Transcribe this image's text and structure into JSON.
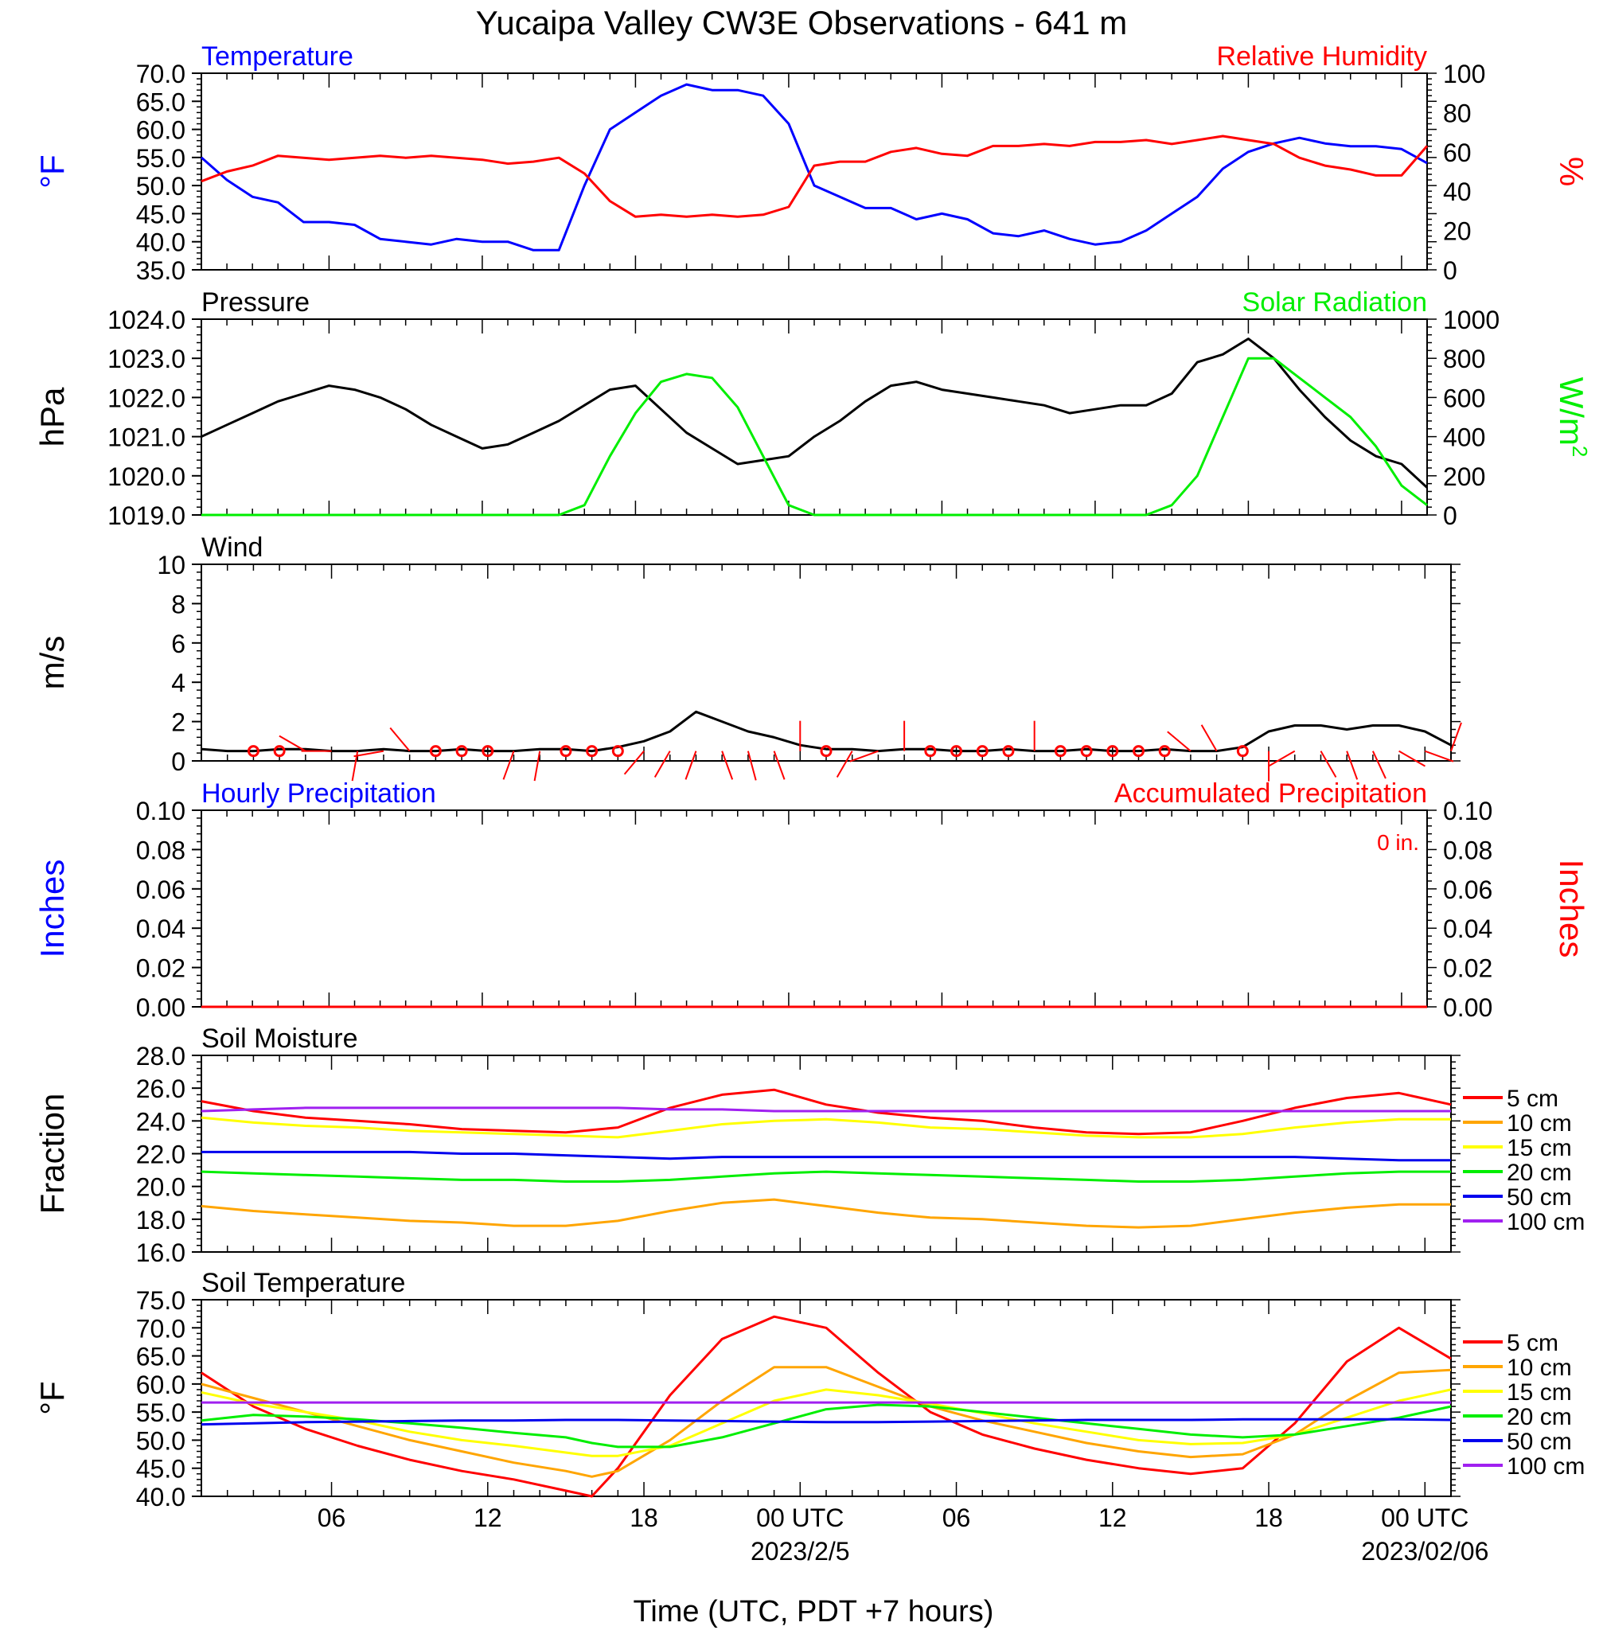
{
  "title": "Yucaipa Valley CW3E Observations - 641 m",
  "x_axis": {
    "label": "Time (UTC, PDT +7 hours)",
    "ticks": [
      "06",
      "12",
      "18",
      "00 UTC",
      "06",
      "12",
      "18",
      "00 UTC"
    ],
    "tick_hours": [
      6,
      12,
      18,
      24,
      30,
      36,
      42,
      48
    ],
    "range_hours": [
      1,
      49
    ],
    "date_labels": [
      "2023/2/5",
      "2023/02/06"
    ]
  },
  "colors": {
    "temperature": "#0000ff",
    "humidity": "#ff0000",
    "pressure": "#000000",
    "solar": "#00ee00",
    "wind": "#000000",
    "wind_barb": "#ff0000",
    "d5": "#ff0000",
    "d10": "#ffa500",
    "d15": "#ffff00",
    "d20": "#00ee00",
    "d50": "#0000ee",
    "d100": "#a020f0"
  },
  "chart_data": [
    {
      "id": "temp_rh",
      "type": "line",
      "left_title": "Temperature",
      "right_title": "Relative Humidity",
      "ylabel_left": "°F",
      "ylabel_right": "%",
      "ylim_left": [
        35,
        70
      ],
      "ylim_right": [
        0,
        100
      ],
      "yticks_left": [
        "35.0",
        "40.0",
        "45.0",
        "50.0",
        "55.0",
        "60.0",
        "65.0",
        "70.0"
      ],
      "yticks_right": [
        "0",
        "20",
        "40",
        "60",
        "80",
        "100"
      ],
      "x": [
        1,
        2,
        3,
        4,
        5,
        6,
        7,
        8,
        9,
        10,
        11,
        12,
        13,
        14,
        15,
        16,
        17,
        18,
        19,
        20,
        21,
        22,
        23,
        24,
        25,
        26,
        27,
        28,
        29,
        30,
        31,
        32,
        33,
        34,
        35,
        36,
        37,
        38,
        39,
        40,
        41,
        42,
        43,
        44,
        45,
        46,
        47,
        48,
        49
      ],
      "series": [
        {
          "name": "Temperature",
          "axis": "left",
          "color_key": "temperature",
          "values": [
            55,
            51,
            48,
            47,
            43.5,
            43.5,
            43,
            40.5,
            40,
            39.5,
            40.5,
            40,
            40,
            38.5,
            38.5,
            50,
            60,
            63,
            66,
            68,
            67,
            67,
            66,
            61,
            50,
            48,
            46,
            46,
            44,
            45,
            44,
            41.5,
            41,
            42,
            40.5,
            39.5,
            40,
            42,
            45,
            48,
            53,
            56,
            57.5,
            58.5,
            57.5,
            57,
            57,
            56.5,
            54
          ]
        },
        {
          "name": "Relative Humidity",
          "axis": "right",
          "color_key": "humidity",
          "values": [
            45,
            50,
            53,
            58,
            57,
            56,
            57,
            58,
            57,
            58,
            57,
            56,
            54,
            55,
            57,
            49,
            35,
            27,
            28,
            27,
            28,
            27,
            28,
            32,
            53,
            55,
            55,
            60,
            62,
            59,
            58,
            63,
            63,
            64,
            63,
            65,
            65,
            66,
            64,
            66,
            68,
            66,
            64,
            57,
            53,
            51,
            48,
            48,
            63
          ]
        }
      ]
    },
    {
      "id": "pressure_solar",
      "type": "line",
      "left_title": "Pressure",
      "right_title": "Solar Radiation",
      "ylabel_left": "hPa",
      "ylabel_right": "W/m",
      "ylabel_right_sup": "2",
      "ylim_left": [
        1019,
        1024
      ],
      "ylim_right": [
        0,
        1000
      ],
      "yticks_left": [
        "1019.0",
        "1020.0",
        "1021.0",
        "1022.0",
        "1023.0",
        "1024.0"
      ],
      "yticks_right": [
        "0",
        "200",
        "400",
        "600",
        "800",
        "1000"
      ],
      "x": [
        1,
        2,
        3,
        4,
        5,
        6,
        7,
        8,
        9,
        10,
        11,
        12,
        13,
        14,
        15,
        16,
        17,
        18,
        19,
        20,
        21,
        22,
        23,
        24,
        25,
        26,
        27,
        28,
        29,
        30,
        31,
        32,
        33,
        34,
        35,
        36,
        37,
        38,
        39,
        40,
        41,
        42,
        43,
        44,
        45,
        46,
        47,
        48,
        49
      ],
      "series": [
        {
          "name": "Pressure",
          "axis": "left",
          "color_key": "pressure",
          "values": [
            1021.0,
            1021.3,
            1021.6,
            1021.9,
            1022.1,
            1022.3,
            1022.2,
            1022.0,
            1021.7,
            1021.3,
            1021.0,
            1020.7,
            1020.8,
            1021.1,
            1021.4,
            1021.8,
            1022.2,
            1022.3,
            1021.7,
            1021.1,
            1020.7,
            1020.3,
            1020.4,
            1020.5,
            1021.0,
            1021.4,
            1021.9,
            1022.3,
            1022.4,
            1022.2,
            1022.1,
            1022.0,
            1021.9,
            1021.8,
            1021.6,
            1021.7,
            1021.8,
            1021.8,
            1022.1,
            1022.9,
            1023.1,
            1023.5,
            1023.0,
            1022.2,
            1021.5,
            1020.9,
            1020.5,
            1020.3,
            1019.7
          ]
        },
        {
          "name": "Solar Radiation",
          "axis": "right",
          "color_key": "solar",
          "values": [
            0,
            0,
            0,
            0,
            0,
            0,
            0,
            0,
            0,
            0,
            0,
            0,
            0,
            0,
            0,
            50,
            300,
            520,
            680,
            720,
            700,
            550,
            300,
            50,
            0,
            0,
            0,
            0,
            0,
            0,
            0,
            0,
            0,
            0,
            0,
            0,
            0,
            0,
            50,
            200,
            500,
            800,
            800,
            700,
            600,
            500,
            350,
            150,
            50
          ]
        }
      ]
    },
    {
      "id": "wind",
      "type": "line",
      "left_title": "Wind",
      "ylabel_left": "m/s",
      "ylim_left": [
        0,
        10
      ],
      "yticks_left": [
        "0",
        "2",
        "4",
        "6",
        "8",
        "10"
      ],
      "x": [
        1,
        2,
        3,
        4,
        5,
        6,
        7,
        8,
        9,
        10,
        11,
        12,
        13,
        14,
        15,
        16,
        17,
        18,
        19,
        20,
        21,
        22,
        23,
        24,
        25,
        26,
        27,
        28,
        29,
        30,
        31,
        32,
        33,
        34,
        35,
        36,
        37,
        38,
        39,
        40,
        41,
        42,
        43,
        44,
        45,
        46,
        47,
        48,
        49
      ],
      "series": [
        {
          "name": "Wind",
          "axis": "left",
          "color_key": "wind",
          "values": [
            0.6,
            0.5,
            0.5,
            0.6,
            0.6,
            0.5,
            0.5,
            0.6,
            0.5,
            0.5,
            0.6,
            0.5,
            0.5,
            0.6,
            0.6,
            0.5,
            0.7,
            1.0,
            1.5,
            2.5,
            2.0,
            1.5,
            1.2,
            0.8,
            0.6,
            0.6,
            0.5,
            0.6,
            0.6,
            0.5,
            0.5,
            0.6,
            0.5,
            0.5,
            0.6,
            0.5,
            0.5,
            0.6,
            0.5,
            0.5,
            0.7,
            1.5,
            1.8,
            1.8,
            1.6,
            1.8,
            1.8,
            1.5,
            0.8
          ]
        }
      ],
      "barbs": {
        "x": [
          3,
          4,
          5,
          6,
          7,
          8,
          9,
          10,
          11,
          12,
          13,
          14,
          15,
          16,
          17,
          18,
          19,
          20,
          21,
          22,
          23,
          24,
          25,
          26,
          27,
          28,
          29,
          30,
          31,
          32,
          33,
          34,
          35,
          36,
          37,
          38,
          39,
          40,
          41,
          42,
          43,
          44,
          45,
          46,
          47,
          48,
          49
        ],
        "calm": [
          3,
          4,
          10,
          11,
          12,
          15,
          16,
          17,
          25,
          29,
          30,
          31,
          32,
          34,
          35,
          36,
          37,
          38,
          41
        ],
        "dir_deg": [
          0,
          0,
          300,
          270,
          190,
          260,
          320,
          0,
          0,
          0,
          200,
          190,
          0,
          0,
          0,
          220,
          210,
          200,
          160,
          165,
          160,
          0,
          245,
          210,
          250,
          0,
          0,
          0,
          0,
          0,
          0,
          0,
          0,
          0,
          0,
          0,
          310,
          330,
          0,
          180,
          240,
          150,
          160,
          155,
          120,
          110,
          20
        ]
      }
    },
    {
      "id": "precip",
      "type": "line",
      "left_title": "Hourly Precipitation",
      "right_title": "Accumulated Precipitation",
      "annotation": "0 in.",
      "ylabel_left": "Inches",
      "ylabel_right": "Inches",
      "ylim_left": [
        0,
        0.1
      ],
      "ylim_right": [
        0,
        0.1
      ],
      "yticks_left": [
        "0.00",
        "0.02",
        "0.04",
        "0.06",
        "0.08",
        "0.10"
      ],
      "yticks_right": [
        "0.00",
        "0.02",
        "0.04",
        "0.06",
        "0.08",
        "0.10"
      ],
      "x": [
        1,
        49
      ],
      "series": [
        {
          "name": "Hourly Precipitation",
          "axis": "left",
          "color_key": "temperature",
          "values": [
            0,
            0
          ]
        },
        {
          "name": "Accumulated Precipitation",
          "axis": "right",
          "color_key": "humidity",
          "values": [
            0,
            0
          ]
        }
      ]
    },
    {
      "id": "soil_moisture",
      "type": "line",
      "left_title": "Soil Moisture",
      "ylabel_left": "Fraction",
      "ylim_left": [
        16,
        28
      ],
      "yticks_left": [
        "16.0",
        "18.0",
        "20.0",
        "22.0",
        "24.0",
        "26.0",
        "28.0"
      ],
      "legend_position": "right",
      "x": [
        1,
        3,
        5,
        7,
        9,
        11,
        13,
        15,
        17,
        19,
        21,
        23,
        25,
        27,
        29,
        31,
        33,
        35,
        37,
        39,
        41,
        43,
        45,
        47,
        49
      ],
      "series": [
        {
          "name": "5 cm",
          "color_key": "d5",
          "values": [
            25.2,
            24.6,
            24.2,
            24.0,
            23.8,
            23.5,
            23.4,
            23.3,
            23.6,
            24.8,
            25.6,
            25.9,
            25.0,
            24.5,
            24.2,
            24.0,
            23.6,
            23.3,
            23.2,
            23.3,
            24.0,
            24.8,
            25.4,
            25.7,
            25.0
          ]
        },
        {
          "name": "10 cm",
          "color_key": "d10",
          "values": [
            18.8,
            18.5,
            18.3,
            18.1,
            17.9,
            17.8,
            17.6,
            17.6,
            17.9,
            18.5,
            19.0,
            19.2,
            18.8,
            18.4,
            18.1,
            18.0,
            17.8,
            17.6,
            17.5,
            17.6,
            18.0,
            18.4,
            18.7,
            18.9,
            18.9
          ]
        },
        {
          "name": "15 cm",
          "color_key": "d15",
          "values": [
            24.2,
            23.9,
            23.7,
            23.6,
            23.4,
            23.3,
            23.2,
            23.1,
            23.0,
            23.4,
            23.8,
            24.0,
            24.1,
            23.9,
            23.6,
            23.5,
            23.3,
            23.1,
            23.0,
            23.0,
            23.2,
            23.6,
            23.9,
            24.1,
            24.1
          ]
        },
        {
          "name": "20 cm",
          "color_key": "d20",
          "values": [
            20.9,
            20.8,
            20.7,
            20.6,
            20.5,
            20.4,
            20.4,
            20.3,
            20.3,
            20.4,
            20.6,
            20.8,
            20.9,
            20.8,
            20.7,
            20.6,
            20.5,
            20.4,
            20.3,
            20.3,
            20.4,
            20.6,
            20.8,
            20.9,
            20.9
          ]
        },
        {
          "name": "50 cm",
          "color_key": "d50",
          "values": [
            22.1,
            22.1,
            22.1,
            22.1,
            22.1,
            22.0,
            22.0,
            21.9,
            21.8,
            21.7,
            21.8,
            21.8,
            21.8,
            21.8,
            21.8,
            21.8,
            21.8,
            21.8,
            21.8,
            21.8,
            21.8,
            21.8,
            21.7,
            21.6,
            21.6
          ]
        },
        {
          "name": "100 cm",
          "color_key": "d100",
          "values": [
            24.6,
            24.7,
            24.8,
            24.8,
            24.8,
            24.8,
            24.8,
            24.8,
            24.8,
            24.7,
            24.7,
            24.6,
            24.6,
            24.6,
            24.6,
            24.6,
            24.6,
            24.6,
            24.6,
            24.6,
            24.6,
            24.6,
            24.6,
            24.6,
            24.6
          ]
        }
      ]
    },
    {
      "id": "soil_temperature",
      "type": "line",
      "left_title": "Soil Temperature",
      "ylabel_left": "°F",
      "ylim_left": [
        40,
        75
      ],
      "yticks_left": [
        "40.0",
        "45.0",
        "50.0",
        "55.0",
        "60.0",
        "65.0",
        "70.0",
        "75.0"
      ],
      "legend_position": "right",
      "x": [
        1,
        3,
        5,
        7,
        9,
        11,
        13,
        15,
        16,
        17,
        19,
        21,
        23,
        25,
        27,
        29,
        31,
        33,
        35,
        37,
        39,
        41,
        43,
        45,
        47,
        49
      ],
      "series": [
        {
          "name": "5 cm",
          "color_key": "d5",
          "values": [
            62,
            56,
            52,
            49,
            46.5,
            44.5,
            43,
            41,
            40,
            45,
            58,
            68,
            72,
            70,
            62,
            55,
            51,
            48.5,
            46.5,
            45,
            44,
            45,
            53,
            64,
            70,
            64.5
          ]
        },
        {
          "name": "10 cm",
          "color_key": "d10",
          "values": [
            60,
            57.5,
            55,
            52.5,
            50,
            48,
            46,
            44.5,
            43.5,
            44.5,
            50,
            57,
            63,
            63,
            59.5,
            56,
            53.5,
            51.5,
            49.5,
            48,
            47,
            47.5,
            51,
            57,
            62,
            62.5
          ]
        },
        {
          "name": "15 cm",
          "color_key": "d15",
          "values": [
            58.5,
            56.5,
            55,
            53.5,
            51.5,
            50,
            49,
            47.8,
            47.2,
            47.2,
            49,
            53,
            57,
            59,
            58,
            56.5,
            54.8,
            53,
            51.5,
            50,
            49.3,
            49.5,
            51,
            54,
            57,
            59
          ]
        },
        {
          "name": "20 cm",
          "color_key": "d20",
          "values": [
            53.5,
            54.5,
            54.2,
            53.7,
            53,
            52.2,
            51.3,
            50.5,
            49.5,
            48.8,
            48.8,
            50.5,
            53,
            55.5,
            56.3,
            56,
            55,
            54,
            53,
            52,
            51,
            50.5,
            51,
            52.5,
            54,
            56
          ]
        },
        {
          "name": "50 cm",
          "color_key": "d50",
          "values": [
            52.8,
            53,
            53.2,
            53.3,
            53.4,
            53.5,
            53.5,
            53.6,
            53.6,
            53.6,
            53.5,
            53.4,
            53.3,
            53.2,
            53.2,
            53.3,
            53.4,
            53.5,
            53.6,
            53.6,
            53.6,
            53.7,
            53.7,
            53.7,
            53.7,
            53.6
          ]
        },
        {
          "name": "100 cm",
          "color_key": "d100",
          "values": [
            56.7,
            56.7,
            56.7,
            56.7,
            56.7,
            56.7,
            56.7,
            56.7,
            56.7,
            56.7,
            56.7,
            56.7,
            56.7,
            56.7,
            56.7,
            56.7,
            56.7,
            56.7,
            56.7,
            56.7,
            56.7,
            56.7,
            56.7,
            56.7,
            56.7,
            56.7
          ]
        }
      ]
    }
  ]
}
